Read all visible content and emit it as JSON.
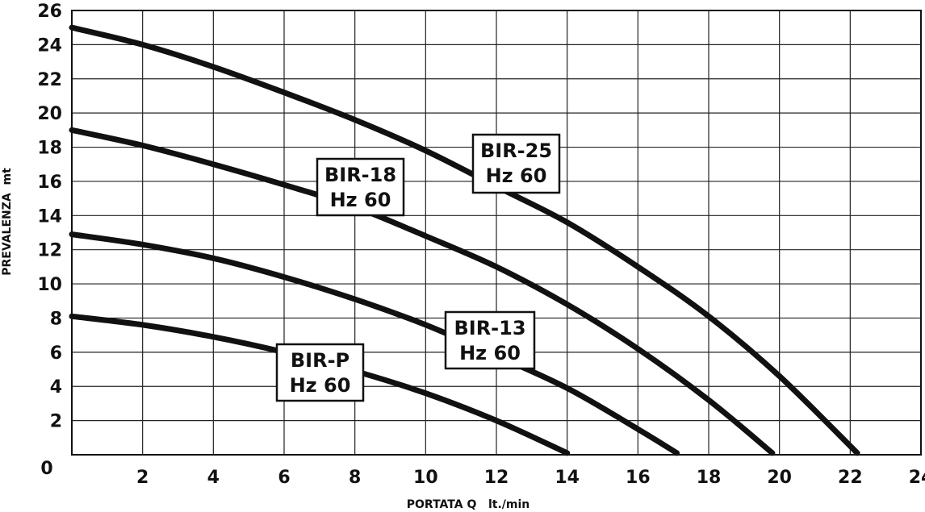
{
  "chart_data": {
    "type": "line",
    "title": "",
    "xlabel": "PORTATA Q   lt./min",
    "ylabel": "PREVALENZA  mt",
    "xlim": [
      0,
      24
    ],
    "ylim": [
      0,
      26
    ],
    "xticks": [
      2,
      4,
      6,
      8,
      10,
      12,
      14,
      16,
      18,
      20,
      22,
      24
    ],
    "yticks": [
      2,
      4,
      6,
      8,
      10,
      12,
      14,
      16,
      18,
      20,
      22,
      24,
      26
    ],
    "zero_label": "0",
    "grid": true,
    "series": [
      {
        "name": "BIR-P",
        "label_lines": [
          "BIR-P",
          "Hz 60"
        ],
        "x": [
          0,
          2,
          4,
          6,
          8,
          10,
          12,
          14
        ],
        "y": [
          8.1,
          7.6,
          6.9,
          6.0,
          4.9,
          3.6,
          2.0,
          0.1
        ]
      },
      {
        "name": "BIR-13",
        "label_lines": [
          "BIR-13",
          "Hz 60"
        ],
        "x": [
          0,
          2,
          4,
          6,
          8,
          10,
          12,
          14,
          16,
          17.1
        ],
        "y": [
          12.9,
          12.3,
          11.5,
          10.4,
          9.1,
          7.6,
          5.8,
          3.9,
          1.5,
          0.1
        ]
      },
      {
        "name": "BIR-18",
        "label_lines": [
          "BIR-18",
          "Hz 60"
        ],
        "x": [
          0,
          2,
          4,
          6,
          8,
          10,
          12,
          14,
          16,
          18,
          19.8
        ],
        "y": [
          19.0,
          18.1,
          17.0,
          15.8,
          14.5,
          12.8,
          11.0,
          8.8,
          6.2,
          3.2,
          0.1
        ]
      },
      {
        "name": "BIR-25",
        "label_lines": [
          "BIR-25",
          "Hz 60"
        ],
        "x": [
          0,
          2,
          4,
          6,
          8,
          10,
          12,
          14,
          16,
          18,
          20,
          22.2
        ],
        "y": [
          25.0,
          24.0,
          22.7,
          21.2,
          19.6,
          17.8,
          15.7,
          13.6,
          11.0,
          8.1,
          4.6,
          0.1
        ]
      }
    ]
  }
}
